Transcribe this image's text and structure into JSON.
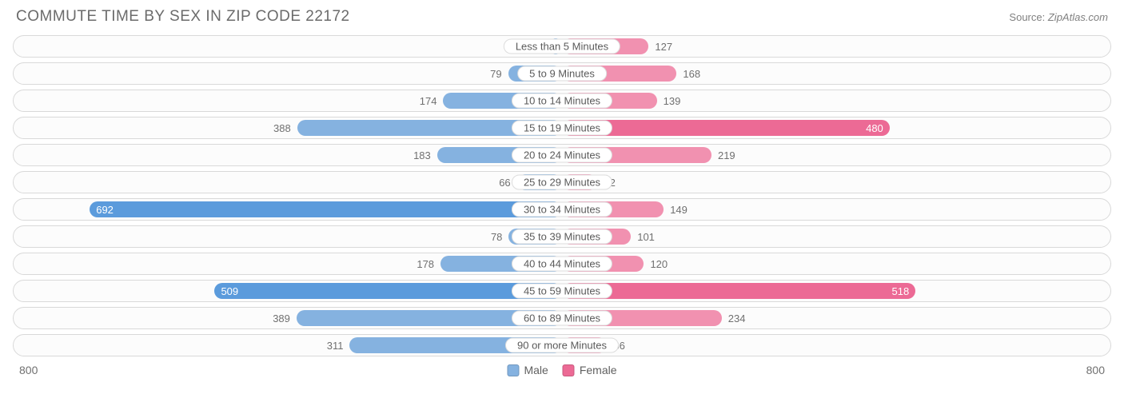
{
  "header": {
    "title": "COMMUTE TIME BY SEX IN ZIP CODE 22172",
    "source_label": "Source:",
    "source_value": "ZipAtlas.com"
  },
  "chart": {
    "type": "diverging-bar",
    "axis_max": 800,
    "axis_left_label": "800",
    "axis_right_label": "800",
    "inside_threshold": 450,
    "colors": {
      "male_base": "#85b2e0",
      "male_highlight": "#5b9bdc",
      "female_base": "#f191b0",
      "female_highlight": "#ec6a95",
      "row_border": "#d9d9d9",
      "row_bg": "#fcfcfc",
      "text_muted": "#707070",
      "label_border": "#dcdcdc",
      "label_bg": "#ffffff",
      "background": "#ffffff"
    },
    "legend": [
      {
        "label": "Male",
        "color": "#85b2e0"
      },
      {
        "label": "Female",
        "color": "#ec6a95"
      }
    ],
    "rows": [
      {
        "category": "Less than 5 Minutes",
        "male": 0,
        "female": 127,
        "male_hl": false,
        "female_hl": false
      },
      {
        "category": "5 to 9 Minutes",
        "male": 79,
        "female": 168,
        "male_hl": false,
        "female_hl": false
      },
      {
        "category": "10 to 14 Minutes",
        "male": 174,
        "female": 139,
        "male_hl": false,
        "female_hl": false
      },
      {
        "category": "15 to 19 Minutes",
        "male": 388,
        "female": 480,
        "male_hl": false,
        "female_hl": true
      },
      {
        "category": "20 to 24 Minutes",
        "male": 183,
        "female": 219,
        "male_hl": false,
        "female_hl": false
      },
      {
        "category": "25 to 29 Minutes",
        "male": 66,
        "female": 52,
        "male_hl": false,
        "female_hl": false
      },
      {
        "category": "30 to 34 Minutes",
        "male": 692,
        "female": 149,
        "male_hl": true,
        "female_hl": false
      },
      {
        "category": "35 to 39 Minutes",
        "male": 78,
        "female": 101,
        "male_hl": false,
        "female_hl": false
      },
      {
        "category": "40 to 44 Minutes",
        "male": 178,
        "female": 120,
        "male_hl": false,
        "female_hl": false
      },
      {
        "category": "45 to 59 Minutes",
        "male": 509,
        "female": 518,
        "male_hl": true,
        "female_hl": true
      },
      {
        "category": "60 to 89 Minutes",
        "male": 389,
        "female": 234,
        "male_hl": false,
        "female_hl": false
      },
      {
        "category": "90 or more Minutes",
        "male": 311,
        "female": 66,
        "male_hl": false,
        "female_hl": false
      }
    ]
  }
}
